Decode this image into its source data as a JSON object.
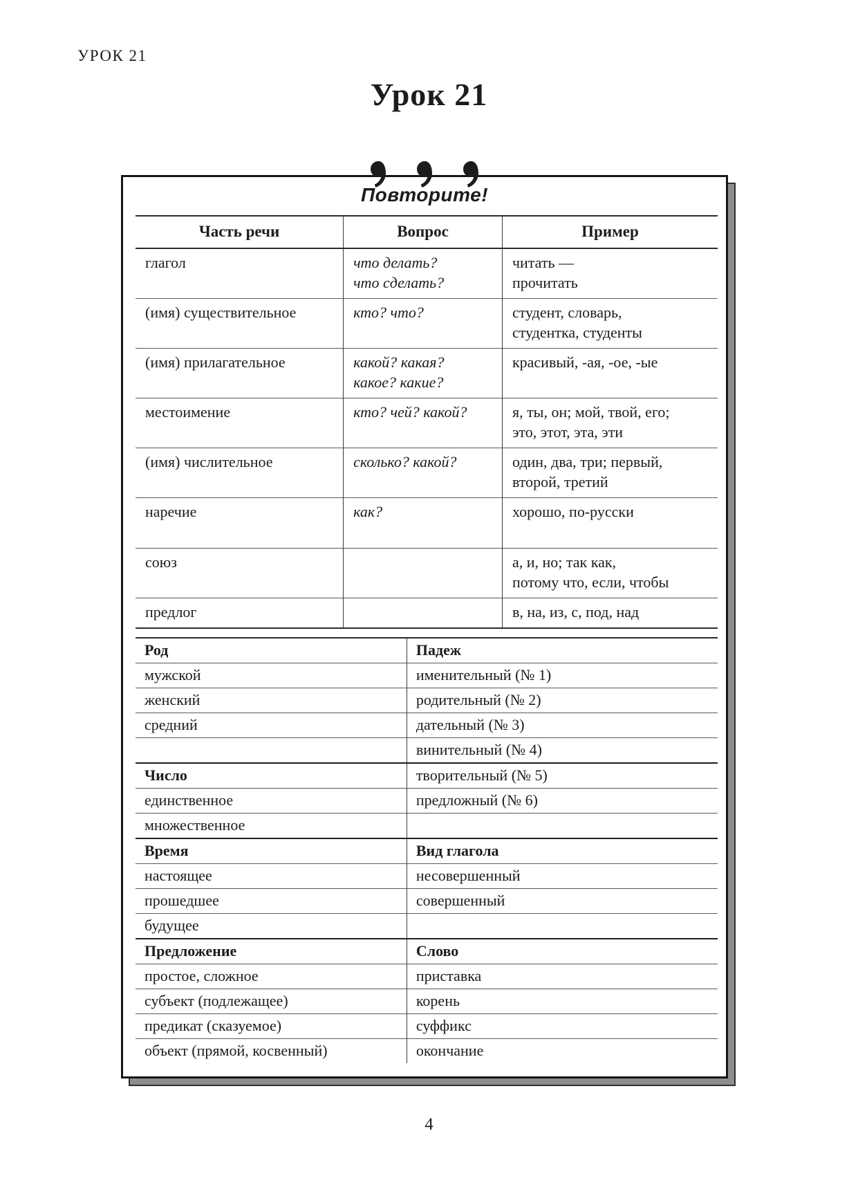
{
  "header": {
    "running_head": "УРОК 21",
    "title": "Урок 21"
  },
  "card": {
    "heading": "Повторите!"
  },
  "parts_of_speech_table": {
    "columns": [
      "Часть речи",
      "Вопрос",
      "Пример"
    ],
    "rows": [
      {
        "part": "глагол",
        "question": "что делать?\nчто сделать?",
        "example": "читать —\nпрочитать"
      },
      {
        "part": "(имя) существительное",
        "question": "кто? что?",
        "example": "студент, словарь,\nстудентка, студенты"
      },
      {
        "part": "(имя) прилагательное",
        "question": "какой? какая?\nкакое? какие?",
        "example": "красивый, -ая, -ое, -ые"
      },
      {
        "part": "местоимение",
        "question": "кто? чей? какой?",
        "example": "я, ты, он; мой, твой, его;\nэто, этот, эта, эти"
      },
      {
        "part": "(имя) числительное",
        "question": "сколько? какой?",
        "example": "один, два, три; первый,\nвторой, третий"
      },
      {
        "part": "наречие",
        "question": "как?",
        "example": "хорошо, по-русски"
      },
      {
        "part": "союз",
        "question": "",
        "example": "а, и, но; так как,\nпотому что, если, чтобы"
      },
      {
        "part": "предлог",
        "question": "",
        "example": "в, на, из, с, под, над"
      }
    ]
  },
  "grammar_table": {
    "rows": [
      {
        "left": "Род",
        "right": "Падеж",
        "left_bold": true,
        "right_bold": true,
        "section": false
      },
      {
        "left": "мужской",
        "right": "именительный (№ 1)"
      },
      {
        "left": "женский",
        "right": "родительный (№ 2)"
      },
      {
        "left": "средний",
        "right": "дательный (№ 3)"
      },
      {
        "left": "",
        "right": "винительный (№ 4)"
      },
      {
        "left": "Число",
        "right": "творительный (№ 5)",
        "left_bold": true,
        "section": true
      },
      {
        "left": "единственное",
        "right": "предложный (№ 6)"
      },
      {
        "left": "множественное",
        "right": ""
      },
      {
        "left": "Время",
        "right": "Вид глагола",
        "left_bold": true,
        "right_bold": true,
        "section": true
      },
      {
        "left": "настоящее",
        "right": "несовершенный"
      },
      {
        "left": "прошедшее",
        "right": "совершенный"
      },
      {
        "left": "будущее",
        "right": ""
      },
      {
        "left": "Предложение",
        "right": "Слово",
        "left_bold": true,
        "right_bold": true,
        "section": true
      },
      {
        "left": "простое, сложное",
        "right": "приставка"
      },
      {
        "left": "субъект (подлежащее)",
        "right": "корень"
      },
      {
        "left": "предикат (сказуемое)",
        "right": "суффикс"
      },
      {
        "left": "объект (прямой, косвенный)",
        "right": "окончание"
      }
    ]
  },
  "footer": {
    "page_number": "4"
  },
  "ornaments": {
    "name": "comma-ornament",
    "count": 3
  },
  "colors": {
    "ink": "#1c1c1c",
    "card_border": "#161616",
    "shadow_gray": "#8e8e8e",
    "rule_thin": "#5a5a5a",
    "rule_thick": "#2b2b2b",
    "background": "#ffffff"
  }
}
